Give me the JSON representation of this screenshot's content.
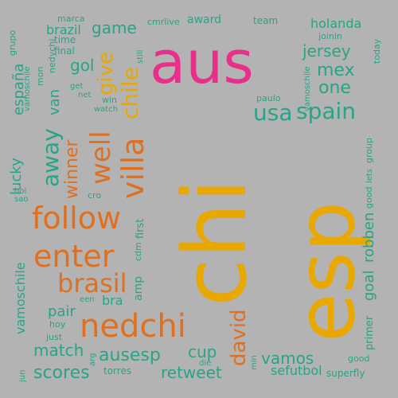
{
  "colors": {
    "background": "#b3b3b3",
    "orange": "#e07020",
    "gold": "#e8a800",
    "teal": "#2aa386",
    "pink": "#e8308a"
  },
  "words": [
    "chi",
    "esp",
    "aus",
    "nedchi",
    "follow",
    "enter",
    "brasil",
    "villa",
    "well",
    "chile",
    "winner",
    "give",
    "away",
    "spain",
    "usa",
    "jersey",
    "mex",
    "one",
    "holanda",
    "game",
    "brazil",
    "gol",
    "españa",
    "lucky",
    "van",
    "final",
    "time",
    "marca",
    "grupo",
    "award",
    "cmrlive",
    "team",
    "joinin",
    "today",
    "still",
    "mon",
    "nedychi",
    "get",
    "net",
    "win",
    "watch",
    "paulo",
    "vamoschile",
    "group",
    "lets",
    "good",
    "robben",
    "goal",
    "primer",
    "superfly",
    "sefutbol",
    "vamos",
    "david",
    "retweet",
    "ausesp",
    "scores",
    "match",
    "cup",
    "torres",
    "die",
    "min",
    "hoy",
    "just",
    "arg",
    "jun",
    "een",
    "bra",
    "pair",
    "amp",
    "cdm",
    "first",
    "cro",
    "hol",
    "sao"
  ]
}
